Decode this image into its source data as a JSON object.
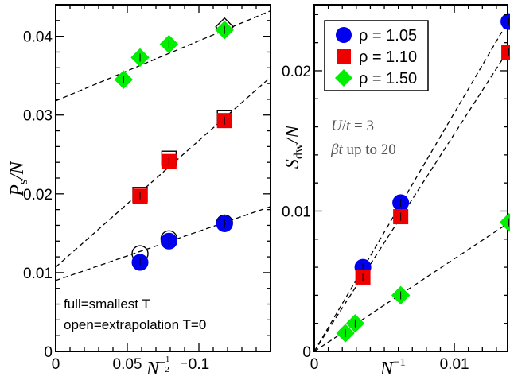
{
  "chart_data": [
    {
      "type": "scatter",
      "xlabel": "N^{-1/2}",
      "ylabel": "P_s/N",
      "xlim": [
        0,
        0.15
      ],
      "ylim": [
        0,
        0.044
      ],
      "x_ticks": [
        {
          "value": 0,
          "label": "0"
        },
        {
          "value": 0.05,
          "label": "0.05"
        },
        {
          "value": 0.1,
          "label": "0.1"
        }
      ],
      "y_ticks": [
        {
          "value": 0,
          "label": "0"
        },
        {
          "value": 0.01,
          "label": "0.01"
        },
        {
          "value": 0.02,
          "label": "0.02"
        },
        {
          "value": 0.03,
          "label": "0.03"
        },
        {
          "value": 0.04,
          "label": "0.04"
        }
      ],
      "annotations": [
        "full=smallest T",
        "open=extrapolation T=0"
      ],
      "series": [
        {
          "color": "#00ee00",
          "marker": "diamond",
          "full": [
            [
              0.0474,
              0.0345
            ],
            [
              0.0589,
              0.0373
            ],
            [
              0.0791,
              0.039
            ],
            [
              0.1179,
              0.0408
            ]
          ],
          "open": [
            [
              0.1179,
              0.0412
            ]
          ],
          "fit": {
            "intercept": 0.0318,
            "slope": 0.0762
          }
        },
        {
          "color": "#ee0000",
          "marker": "square",
          "full": [
            [
              0.0589,
              0.0197
            ],
            [
              0.0791,
              0.0241
            ],
            [
              0.1179,
              0.0293
            ]
          ],
          "open": [
            [
              0.0589,
              0.0199
            ],
            [
              0.0791,
              0.0245
            ],
            [
              0.1179,
              0.0297
            ]
          ],
          "fit": {
            "intercept": 0.0107,
            "slope": 0.1607
          }
        },
        {
          "color": "#0000ee",
          "marker": "circle",
          "full": [
            [
              0.0589,
              0.0113
            ],
            [
              0.0791,
              0.014
            ],
            [
              0.1179,
              0.0162
            ]
          ],
          "open": [
            [
              0.0589,
              0.0124
            ],
            [
              0.0791,
              0.0143
            ],
            [
              0.1179,
              0.0163
            ]
          ],
          "fit": {
            "intercept": 0.009,
            "slope": 0.0625
          }
        }
      ]
    },
    {
      "type": "scatter",
      "xlabel": "N^{-1}",
      "ylabel": "S_dw/N",
      "xlim": [
        0,
        0.0138
      ],
      "ylim": [
        0,
        0.0247
      ],
      "x_ticks": [
        {
          "value": 0,
          "label": "0"
        },
        {
          "value": 0.01,
          "label": "0.01"
        }
      ],
      "y_ticks": [
        {
          "value": 0,
          "label": "0"
        },
        {
          "value": 0.01,
          "label": "0.01"
        },
        {
          "value": 0.02,
          "label": "0.02"
        }
      ],
      "annotations": [
        "U/t = 3",
        "βt up to 20"
      ],
      "legend_position": "top-left",
      "series": [
        {
          "name": "ρ = 1.05",
          "color": "#0000ee",
          "marker": "circle",
          "points": [
            [
              0.00347,
              0.006
            ],
            [
              0.00617,
              0.0106
            ],
            [
              0.01389,
              0.0235
            ]
          ],
          "fit": {
            "intercept": 0,
            "slope": 1.7
          }
        },
        {
          "name": "ρ = 1.10",
          "color": "#ee0000",
          "marker": "square",
          "points": [
            [
              0.00347,
              0.0053
            ],
            [
              0.00617,
              0.0096
            ],
            [
              0.01389,
              0.0213
            ]
          ],
          "fit": {
            "intercept": 0,
            "slope": 1.55
          }
        },
        {
          "name": "ρ = 1.50",
          "color": "#00ee00",
          "marker": "diamond",
          "points": [
            [
              0.00222,
              0.0013
            ],
            [
              0.00292,
              0.002
            ],
            [
              0.00617,
              0.004
            ],
            [
              0.01389,
              0.0092
            ]
          ],
          "fit": {
            "intercept": 0,
            "slope": 0.66
          }
        }
      ]
    }
  ]
}
